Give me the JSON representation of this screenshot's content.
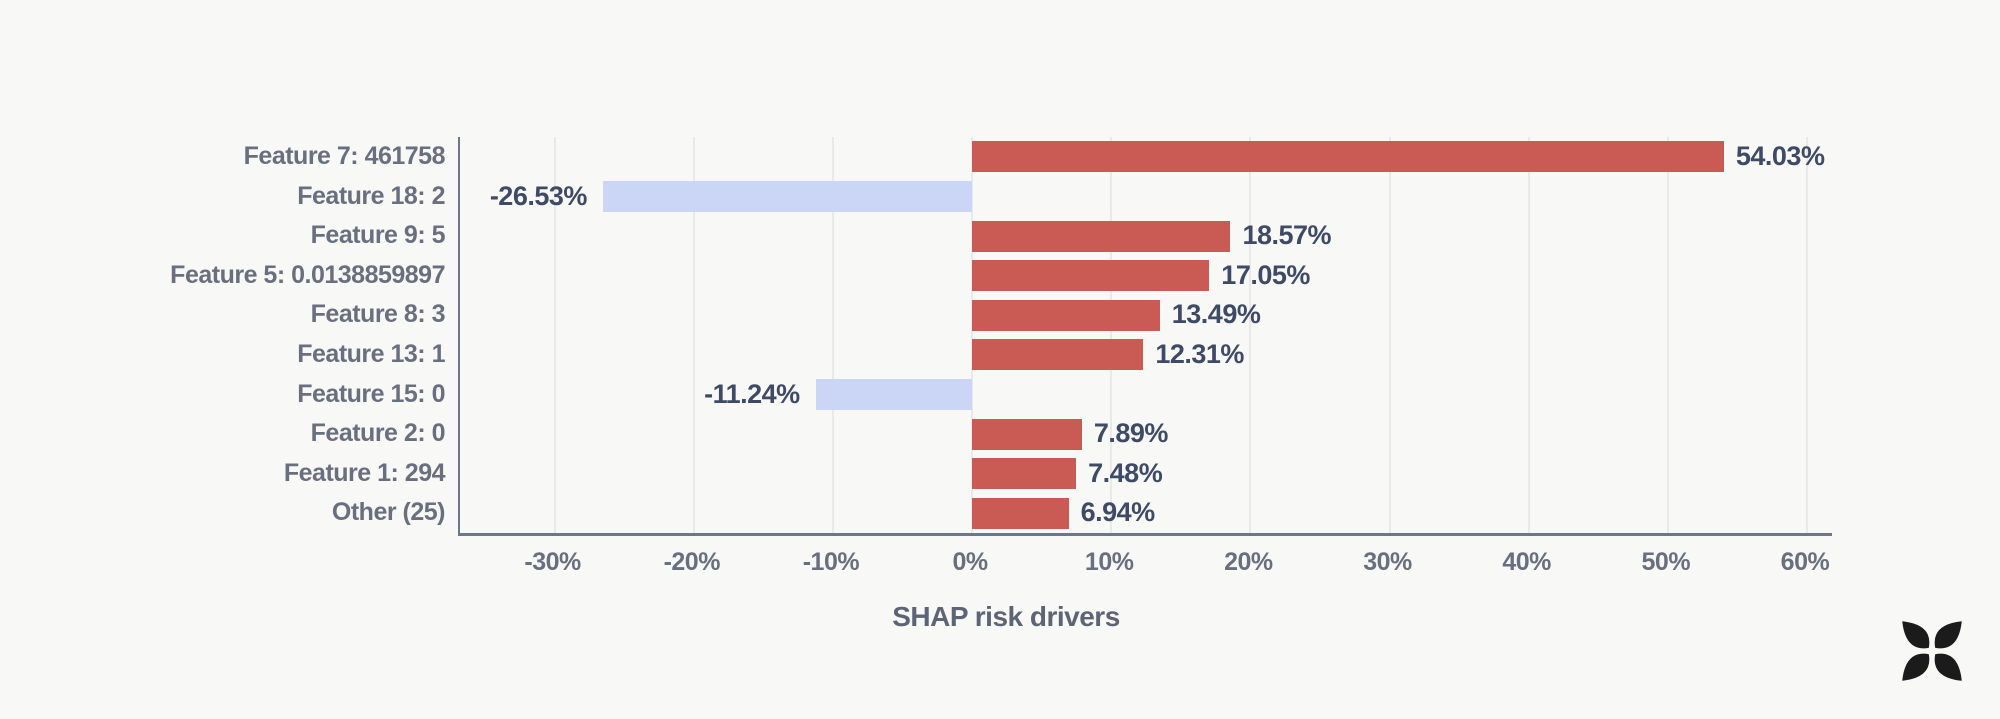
{
  "chart_data": {
    "type": "bar",
    "orientation": "horizontal",
    "title": "",
    "xlabel": "SHAP risk drivers",
    "ylabel": "",
    "categories": [
      "Feature 7: 461758",
      "Feature 18: 2",
      "Feature 9: 5",
      "Feature 5: 0.0138859897",
      "Feature 8: 3",
      "Feature 13: 1",
      "Feature 15: 0",
      "Feature 2: 0",
      "Feature 1: 294",
      "Other (25)"
    ],
    "values": [
      54.03,
      -26.53,
      18.57,
      17.05,
      13.49,
      12.31,
      -11.24,
      7.89,
      7.48,
      6.94
    ],
    "value_labels": [
      "54.03%",
      "-26.53%",
      "18.57%",
      "17.05%",
      "13.49%",
      "12.31%",
      "-11.24%",
      "7.89%",
      "7.48%",
      "6.94%"
    ],
    "x_tick_values": [
      -30,
      -20,
      -10,
      0,
      10,
      20,
      30,
      40,
      50,
      60
    ],
    "x_tick_labels": [
      "-30%",
      "-20%",
      "-10%",
      "0%",
      "10%",
      "20%",
      "30%",
      "40%",
      "50%",
      "60%"
    ],
    "xlim": [
      -36.8,
      61.8
    ],
    "grid": true,
    "legend": false,
    "colors": {
      "positive_bar": "#CA5A54",
      "negative_bar": "#CBD5F5",
      "value_text": "#3E4A66",
      "category_text": "#696F7E",
      "tick_text": "#696F7E",
      "axis_title_text": "#5D6475",
      "gridline": "#E9E9E7",
      "spine": "#6E7689",
      "background": "#F8F8F6"
    }
  },
  "branding": {
    "logo_icon": "four-petal-flower-icon",
    "logo_color": "#1B1B1B"
  }
}
